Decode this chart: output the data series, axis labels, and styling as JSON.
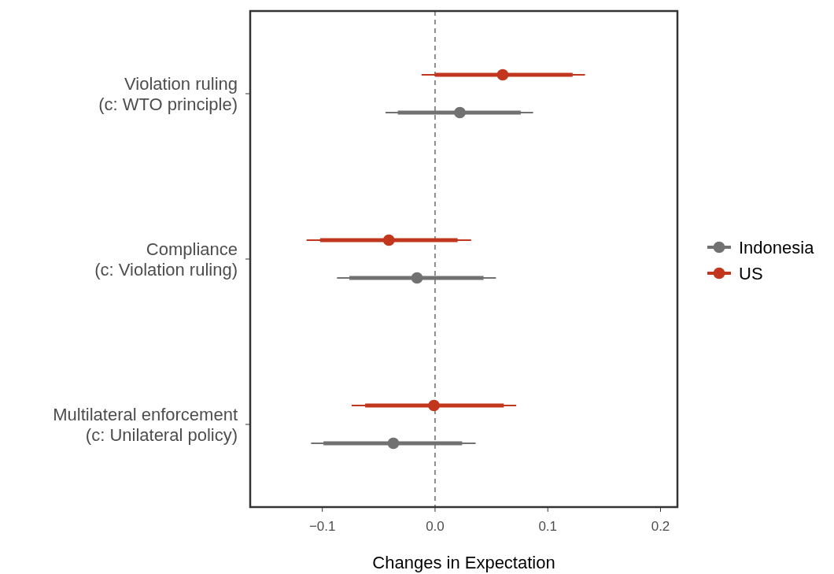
{
  "chart_data": {
    "type": "scatter",
    "orientation": "horizontal",
    "xlabel": "Changes in Expectation",
    "categories": [
      "Violation ruling\n(c: WTO principle)",
      "Compliance\n(c: Violation ruling)",
      "Multilateral enforcement\n(c: Unilateral policy)"
    ],
    "series": [
      {
        "name": "Indonesia",
        "color": "#717171",
        "values": [
          0.022,
          -0.016,
          -0.037
        ],
        "errors": [
          [
            -0.044,
            0.087
          ],
          [
            -0.087,
            0.054
          ],
          [
            -0.11,
            0.036
          ]
        ]
      },
      {
        "name": "US",
        "color": "#c1361d",
        "values": [
          0.06,
          -0.041,
          -0.001
        ],
        "errors": [
          [
            -0.012,
            0.133
          ],
          [
            -0.114,
            0.032
          ],
          [
            -0.074,
            0.072
          ]
        ]
      },
      {
        "type": "bar",
        "color": "#717171",
        "base": [
          -0.033,
          -0.076,
          -0.099
        ],
        "values": [
          0.109,
          0.119,
          0.123
        ]
      },
      {
        "type": "bar",
        "color": "#c1361d",
        "base": [
          0.0,
          -0.102,
          -0.062
        ],
        "values": [
          0.122,
          0.122,
          0.123
        ]
      }
    ],
    "xlim": [
      -0.164,
      0.215
    ],
    "xticks": [
      {
        "value": -0.1,
        "label": "−0.1"
      },
      {
        "value": 0,
        "label": "0.0"
      },
      0.1,
      0.2
    ],
    "ref_lines": [
      {
        "axis": "x",
        "value": 0,
        "line_style": "dashed",
        "color": "#555555"
      }
    ],
    "marker": "circle",
    "legend": "right"
  }
}
